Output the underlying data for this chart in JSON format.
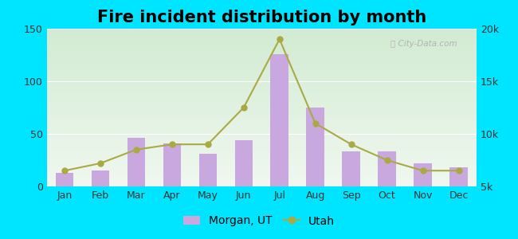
{
  "title": "Fire incident distribution by month",
  "months": [
    "Jan",
    "Feb",
    "Mar",
    "Apr",
    "May",
    "Jun",
    "Jul",
    "Aug",
    "Sep",
    "Oct",
    "Nov",
    "Dec"
  ],
  "morgan_ut": [
    13,
    15,
    46,
    41,
    31,
    44,
    126,
    75,
    33,
    33,
    22,
    18
  ],
  "utah": [
    6500,
    7200,
    8500,
    9000,
    9000,
    12500,
    19000,
    11000,
    9000,
    7500,
    6500,
    6500
  ],
  "bar_color": "#c9a8e0",
  "bar_edgecolor": "#c9a8e0",
  "line_color": "#aaaa44",
  "line_marker_color": "#aaaa44",
  "line_marker_size": 5,
  "outer_bg": "#00e5ff",
  "ylim_left": [
    0,
    150
  ],
  "ylim_right": [
    5000,
    20000
  ],
  "yticks_left": [
    0,
    50,
    100,
    150
  ],
  "yticks_right": [
    5000,
    10000,
    15000,
    20000
  ],
  "ytick_labels_right": [
    "5k",
    "10k",
    "15k",
    "20k"
  ],
  "legend_morgan": "Morgan, UT",
  "legend_utah": "Utah",
  "title_fontsize": 15,
  "tick_fontsize": 9,
  "legend_fontsize": 10,
  "bar_width": 0.5
}
